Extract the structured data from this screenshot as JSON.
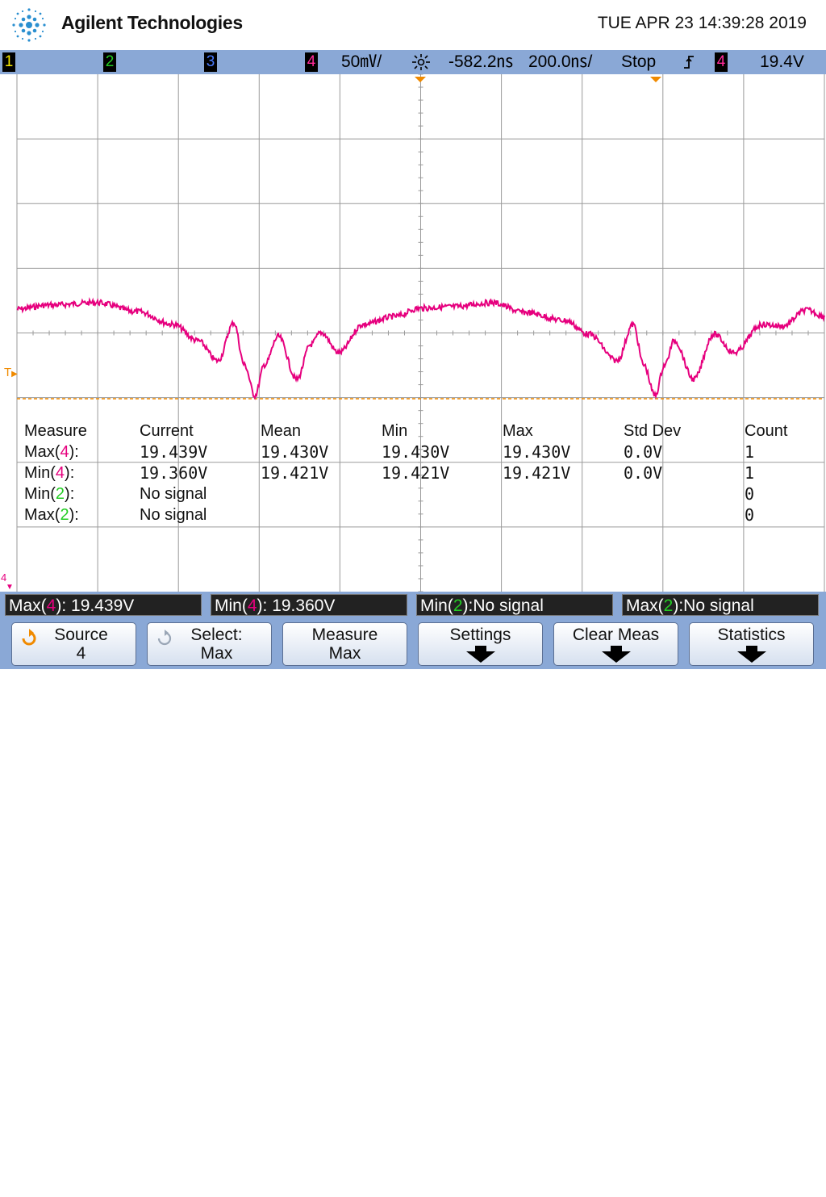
{
  "header": {
    "brand": "Agilent Technologies",
    "datetime": "TUE APR 23 14:39:28 2019"
  },
  "status_bar": {
    "channels": [
      {
        "num": "1",
        "color": "#f5e600"
      },
      {
        "num": "2",
        "color": "#22cc22"
      },
      {
        "num": "3",
        "color": "#4a7cff"
      },
      {
        "num": "4",
        "color": "#ff2a9a"
      }
    ],
    "ch4_scale": "50㎷/",
    "delay_icon": "delay-icon",
    "delay": "-582.2㎱",
    "timebase": "200.0㎱/",
    "run_state": "Stop",
    "trigger_icon": "trigger-edge-icon",
    "trigger_channel": "4",
    "trigger_level": "19.4V"
  },
  "colors": {
    "ch4": "#e6007e",
    "ch2": "#22cc22",
    "trigger_marker": "#f08a00",
    "frame": "#8aa8d6"
  },
  "screen_markers": {
    "trigger_level_marker": "T",
    "ch4_ground_marker": "4"
  },
  "measurements": {
    "headers": [
      "Measure",
      "Current",
      "Mean",
      "Min",
      "Max",
      "Std Dev",
      "Count"
    ],
    "rows": [
      {
        "fn": "Max",
        "ch": "4",
        "sep": "):",
        "current": "19.439V",
        "mean": "19.430V",
        "min": "19.430V",
        "max": "19.430V",
        "std": "0.0V",
        "count": "1"
      },
      {
        "fn": "Min",
        "ch": "4",
        "sep": "):",
        "current": "19.360V",
        "mean": "19.421V",
        "min": "19.421V",
        "max": "19.421V",
        "std": "0.0V",
        "count": "1"
      },
      {
        "fn": "Min",
        "ch": "2",
        "sep": "):",
        "current": "No signal",
        "mean": "",
        "min": "",
        "max": "",
        "std": "",
        "count": "0"
      },
      {
        "fn": "Max",
        "ch": "2",
        "sep": "):",
        "current": "No signal",
        "mean": "",
        "min": "",
        "max": "",
        "std": "",
        "count": "0"
      }
    ]
  },
  "readouts": [
    {
      "fn": "Max(",
      "ch": "4",
      "rest": "): 19.439V"
    },
    {
      "fn": "Min(",
      "ch": "4",
      "rest": "): 19.360V"
    },
    {
      "fn": "Min(",
      "ch": "2",
      "rest": "):No signal"
    },
    {
      "fn": "Max(",
      "ch": "2",
      "rest": "):No signal"
    }
  ],
  "softkeys": [
    {
      "line1": "Source",
      "line2": "4",
      "icon": "rotate-knob-icon",
      "arrow": false
    },
    {
      "line1": "Select:",
      "line2": "Max",
      "icon": "rotate-knob-dim-icon",
      "arrow": false
    },
    {
      "line1": "Measure",
      "line2": "Max",
      "icon": "",
      "arrow": false
    },
    {
      "line1": "Settings",
      "line2": "",
      "icon": "",
      "arrow": true
    },
    {
      "line1": "Clear Meas",
      "line2": "",
      "icon": "",
      "arrow": true
    },
    {
      "line1": "Statistics",
      "line2": "",
      "icon": "",
      "arrow": true
    }
  ]
}
